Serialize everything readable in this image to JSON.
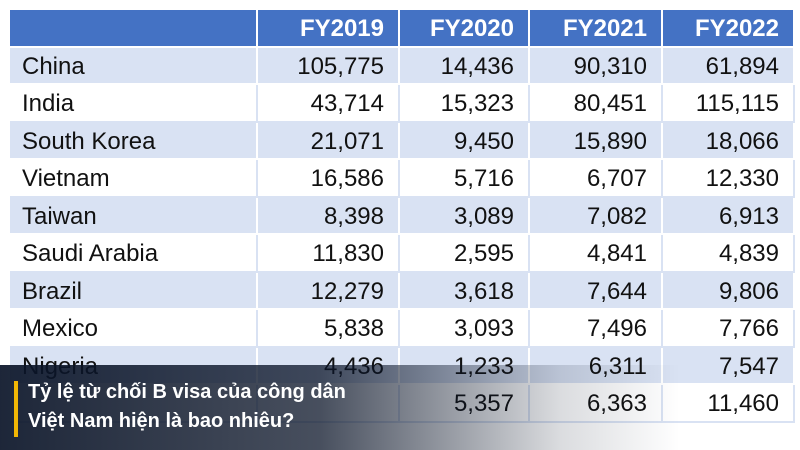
{
  "table": {
    "header": [
      "FY2019",
      "FY2020",
      "FY2021",
      "FY2022"
    ],
    "rows": [
      [
        "China",
        "105,775",
        "14,436",
        "90,310",
        "61,894"
      ],
      [
        "India",
        "43,714",
        "15,323",
        "80,451",
        "115,115"
      ],
      [
        "South Korea",
        "21,071",
        "9,450",
        "15,890",
        "18,066"
      ],
      [
        "Vietnam",
        "16,586",
        "5,716",
        "6,707",
        "12,330"
      ],
      [
        "Taiwan",
        "8,398",
        "3,089",
        "7,082",
        "6,913"
      ],
      [
        "Saudi Arabia",
        "11,830",
        "2,595",
        "4,841",
        "4,839"
      ],
      [
        "Brazil",
        "12,279",
        "3,618",
        "7,644",
        "9,806"
      ],
      [
        "Mexico",
        "5,838",
        "3,093",
        "7,496",
        "7,766"
      ],
      [
        "Nigeria",
        "4,436",
        "1,233",
        "6,311",
        "7,547"
      ],
      [
        null,
        null,
        "5,357",
        "6,363",
        "11,460"
      ]
    ]
  },
  "caption": [
    "Tỷ lệ từ chối B visa của công dân",
    "Việt Nam hiện là bao nhiêu?"
  ]
}
